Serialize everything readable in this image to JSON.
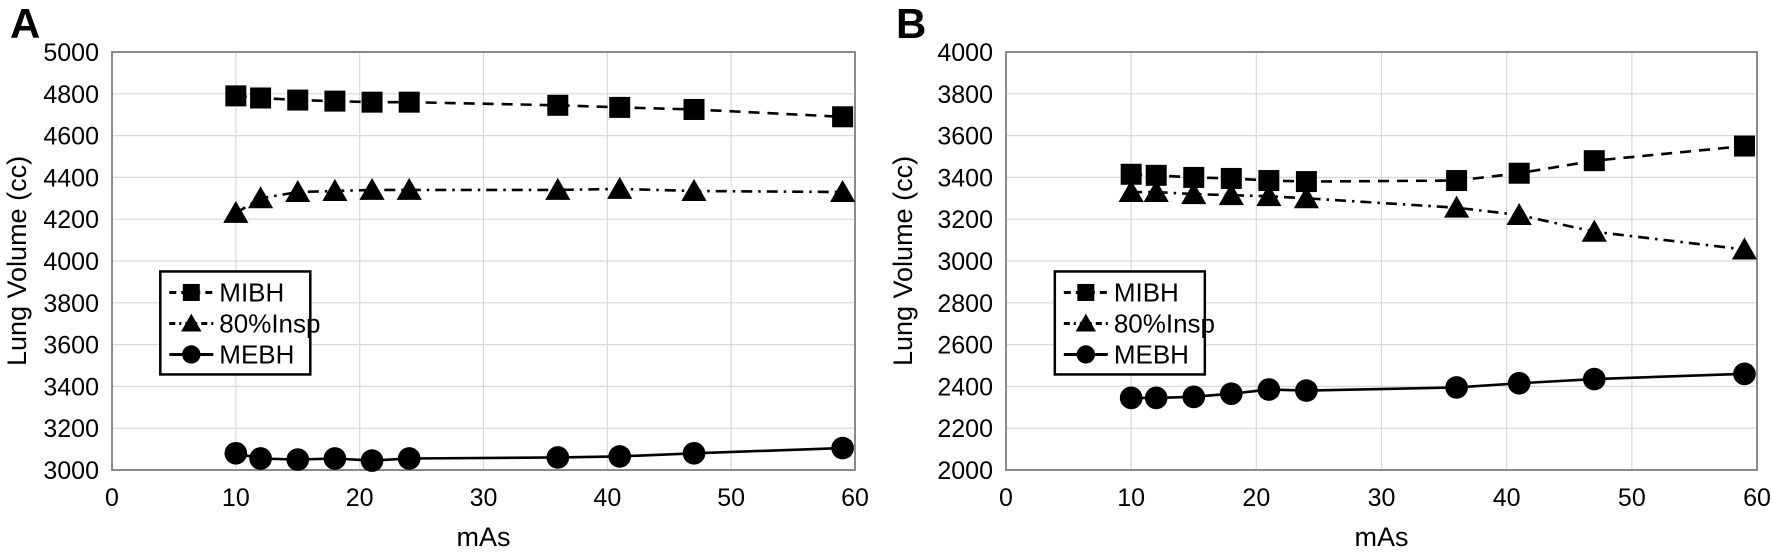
{
  "figure": {
    "background": "#ffffff",
    "colors": {
      "series": "#000000",
      "grid": "#d9d9d9",
      "axis_border": "#7f7f7f",
      "text": "#000000",
      "legend_border": "#000000",
      "legend_fill": "#ffffff"
    }
  },
  "chart_data": [
    {
      "type": "line",
      "panel_label": "A",
      "title": "",
      "xlabel": "mAs",
      "ylabel": "Lung Volume (cc)",
      "xlim": [
        0,
        60
      ],
      "ylim": [
        3000,
        5000
      ],
      "xticks": [
        0,
        10,
        20,
        30,
        40,
        50,
        60
      ],
      "yticks": [
        3000,
        3200,
        3400,
        3600,
        3800,
        4000,
        4200,
        4400,
        4600,
        4800,
        5000
      ],
      "grid": true,
      "legend_position": "middle-left",
      "x": [
        10,
        12,
        15,
        18,
        21,
        24,
        36,
        41,
        47,
        59
      ],
      "series": [
        {
          "name": "MIBH",
          "marker": "square",
          "line_style": "dashed",
          "values": [
            4790,
            4780,
            4770,
            4765,
            4760,
            4760,
            4745,
            4735,
            4725,
            4690
          ]
        },
        {
          "name": "80%Insp",
          "marker": "triangle",
          "line_style": "dashdot",
          "values": [
            4230,
            4300,
            4330,
            4335,
            4340,
            4340,
            4340,
            4345,
            4335,
            4330
          ]
        },
        {
          "name": "MEBH",
          "marker": "circle",
          "line_style": "solid",
          "values": [
            3080,
            3055,
            3050,
            3055,
            3045,
            3055,
            3060,
            3065,
            3080,
            3105
          ]
        }
      ]
    },
    {
      "type": "line",
      "panel_label": "B",
      "title": "",
      "xlabel": "mAs",
      "ylabel": "Lung Volume (cc)",
      "xlim": [
        0,
        60
      ],
      "ylim": [
        2000,
        4000
      ],
      "xticks": [
        0,
        10,
        20,
        30,
        40,
        50,
        60
      ],
      "yticks": [
        2000,
        2200,
        2400,
        2600,
        2800,
        3000,
        3200,
        3400,
        3600,
        3800,
        4000
      ],
      "grid": true,
      "legend_position": "middle-left",
      "x": [
        10,
        12,
        15,
        18,
        21,
        24,
        36,
        41,
        47,
        59
      ],
      "series": [
        {
          "name": "MIBH",
          "marker": "square",
          "line_style": "dashed",
          "values": [
            3415,
            3410,
            3400,
            3395,
            3385,
            3380,
            3385,
            3420,
            3480,
            3550
          ]
        },
        {
          "name": "80%Insp",
          "marker": "triangle",
          "line_style": "dashdot",
          "values": [
            3330,
            3330,
            3320,
            3315,
            3310,
            3300,
            3255,
            3220,
            3140,
            3055
          ]
        },
        {
          "name": "MEBH",
          "marker": "circle",
          "line_style": "solid",
          "values": [
            2345,
            2345,
            2350,
            2365,
            2385,
            2380,
            2395,
            2415,
            2435,
            2460
          ]
        }
      ]
    }
  ]
}
